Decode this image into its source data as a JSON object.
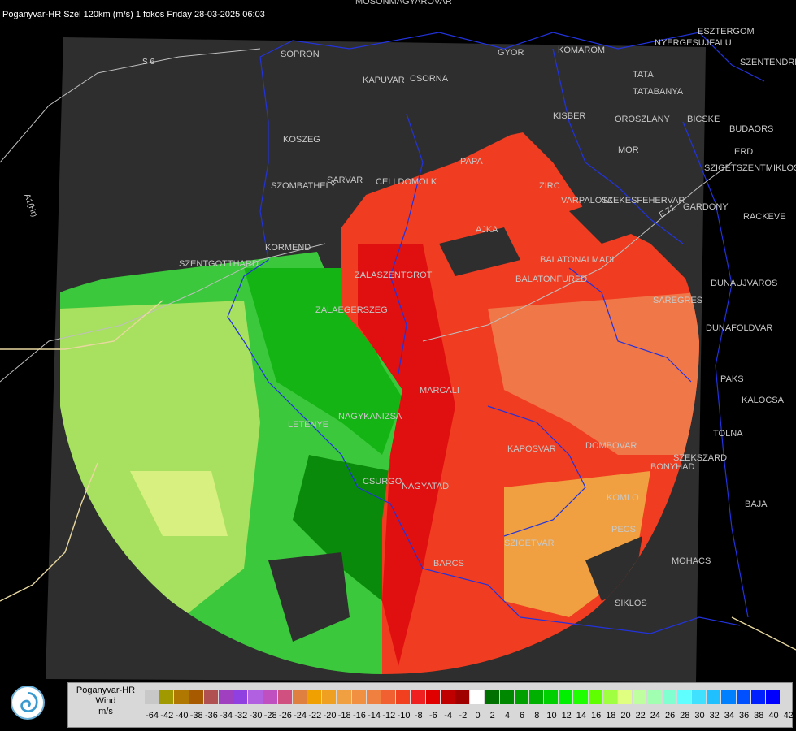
{
  "title": "Poganyvar-HR Szél 120km (m/s) 1 fokos Friday 28-03-2025 06:03",
  "legend": {
    "line1": "Poganyvar-HR",
    "line2": "Wind",
    "line3": "m/s",
    "colors": [
      "#c8c8c8",
      "#a09a00",
      "#b07800",
      "#a85a00",
      "#b05050",
      "#a040c0",
      "#9040e0",
      "#b060e0",
      "#c050c0",
      "#d05080",
      "#e08040",
      "#f0a000",
      "#f0a020",
      "#f0a040",
      "#f09040",
      "#f08040",
      "#f06030",
      "#f04020",
      "#f02020",
      "#e00000",
      "#c00000",
      "#a00000",
      "#ffffff",
      "#007000",
      "#008800",
      "#00a000",
      "#00b000",
      "#00d000",
      "#00f000",
      "#20ff00",
      "#60ff00",
      "#a0ff40",
      "#e0ff80",
      "#c0ffa0",
      "#a0ffb0",
      "#80ffd0",
      "#60ffff",
      "#40e0ff",
      "#20c0ff",
      "#0080ff",
      "#0050ff",
      "#0020ff",
      "#0000ff"
    ],
    "ticks": [
      "-64",
      "-42",
      "-40",
      "-38",
      "-36",
      "-34",
      "-32",
      "-30",
      "-28",
      "-26",
      "-24",
      "-22",
      "-20",
      "-18",
      "-16",
      "-14",
      "-12",
      "-10",
      "-8",
      "-6",
      "-4",
      "-2",
      "0",
      "2",
      "4",
      "6",
      "8",
      "10",
      "12",
      "14",
      "16",
      "18",
      "20",
      "22",
      "24",
      "26",
      "28",
      "30",
      "32",
      "34",
      "36",
      "38",
      "40",
      "42"
    ]
  },
  "cities": [
    {
      "name": "MOSONMAGYAROVAR"
    },
    {
      "name": "SOPRON"
    },
    {
      "name": "GYOR"
    },
    {
      "name": "KOMAROM"
    },
    {
      "name": "ESZTERGOM"
    },
    {
      "name": "NYERGESUJFALU"
    },
    {
      "name": "SZENTENDRE"
    },
    {
      "name": "KAPUVAR"
    },
    {
      "name": "CSORNA"
    },
    {
      "name": "TATA"
    },
    {
      "name": "TATABANYA"
    },
    {
      "name": "KISBER"
    },
    {
      "name": "OROSZLANY"
    },
    {
      "name": "BICSKE"
    },
    {
      "name": "BUDAORS"
    },
    {
      "name": "MOR"
    },
    {
      "name": "KOSZEG"
    },
    {
      "name": "ERD"
    },
    {
      "name": "SZIGETSZENTMIKLOS"
    },
    {
      "name": "PAPA"
    },
    {
      "name": "SARVAR"
    },
    {
      "name": "CELLDOMOLK"
    },
    {
      "name": "SZOMBATHELY"
    },
    {
      "name": "ZIRC"
    },
    {
      "name": "VARPALOTA"
    },
    {
      "name": "SZEKESFEHERVAR"
    },
    {
      "name": "GARDONY"
    },
    {
      "name": "RACKEVE"
    },
    {
      "name": "AJKA"
    },
    {
      "name": "KORMEND"
    },
    {
      "name": "SZENTGOTTHARD"
    },
    {
      "name": "BALATONALMADI"
    },
    {
      "name": "ZALAEGERSZEG"
    },
    {
      "name": "ZALASZENTGROT"
    },
    {
      "name": "BALATONFURED"
    },
    {
      "name": "DUNAUJVAROS"
    },
    {
      "name": "SAREGRES"
    },
    {
      "name": "DUNAFOLDVAR"
    },
    {
      "name": "MARCALI"
    },
    {
      "name": "PAKS"
    },
    {
      "name": "KALOCSA"
    },
    {
      "name": "NAGYKANIZSA"
    },
    {
      "name": "LETENYE"
    },
    {
      "name": "TOLNA"
    },
    {
      "name": "KAPOSVAR"
    },
    {
      "name": "SZEKSZARD"
    },
    {
      "name": "CSURGO"
    },
    {
      "name": "NAGYATAD"
    },
    {
      "name": "DOMBOVAR"
    },
    {
      "name": "BONYHAD"
    },
    {
      "name": "BAJA"
    },
    {
      "name": "KOMLO"
    },
    {
      "name": "PECS"
    },
    {
      "name": "SZIGETVAR"
    },
    {
      "name": "MOHACS"
    },
    {
      "name": "BARCS"
    },
    {
      "name": "SIKLOS"
    }
  ],
  "roads": {
    "s6": "S 6",
    "a1": "A1(Hr)",
    "e71": "E 71"
  }
}
